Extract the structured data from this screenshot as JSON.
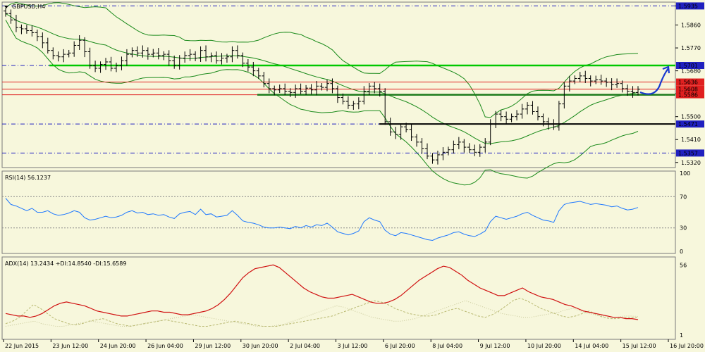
{
  "window": {
    "title": "GBPUSD,H4"
  },
  "colors": {
    "background": "#f7f7dc",
    "candle": "#000000",
    "bollinger": "#1a8a1a",
    "support_resistance": "#00c800",
    "red_level": "#e02020",
    "blue_level": "#2020c0",
    "rsi": "#1e78ff",
    "adx": "#d01010",
    "di_plus": "#b8b870",
    "di_minus": "#c8c898",
    "arrow": "#1a3ad0"
  },
  "chart_data": [
    {
      "type": "candlestick",
      "title": "GBPUSD,H4",
      "price_ticks": [
        "1.5935",
        "1.5860",
        "1.5770",
        "1.5680",
        "1.5590",
        "1.5500",
        "1.5410",
        "1.5320"
      ],
      "ylim": [
        1.53,
        1.595
      ],
      "levels": [
        {
          "value": "1.5935",
          "style": "blue-dash",
          "tag_color": "#2020c0"
        },
        {
          "value": "1.5701",
          "style": "blue-dash",
          "tag_color": "#2020c0"
        },
        {
          "value": "1.5636",
          "style": "red",
          "tag_color": "#e02020"
        },
        {
          "value": "1.5608",
          "style": "red",
          "tag_color": "#e02020"
        },
        {
          "value": "1.5586",
          "style": "red",
          "tag_color": "#e02020"
        },
        {
          "value": "1.5471",
          "style": "blue-dash",
          "tag_color": "#2020c0"
        },
        {
          "value": "1.5357",
          "style": "blue-dash",
          "tag_color": "#2020c0"
        }
      ],
      "close": [
        1.5905,
        1.588,
        1.585,
        1.5845,
        1.5838,
        1.583,
        1.5815,
        1.579,
        1.576,
        1.574,
        1.5735,
        1.5745,
        1.575,
        1.578,
        1.58,
        1.5755,
        1.57,
        1.569,
        1.5705,
        1.5715,
        1.569,
        1.57,
        1.572,
        1.5745,
        1.576,
        1.575,
        1.576,
        1.5745,
        1.575,
        1.574,
        1.5745,
        1.572,
        1.57,
        1.573,
        1.574,
        1.5745,
        1.573,
        1.576,
        1.5735,
        1.574,
        1.572,
        1.573,
        1.5735,
        1.576,
        1.574,
        1.571,
        1.5695,
        1.568,
        1.566,
        1.563,
        1.561,
        1.5605,
        1.561,
        1.56,
        1.5595,
        1.561,
        1.56,
        1.5612,
        1.5605,
        1.562,
        1.5615,
        1.563,
        1.561,
        1.5575,
        1.556,
        1.5545,
        1.555,
        1.556,
        1.56,
        1.562,
        1.561,
        1.56,
        1.548,
        1.544,
        1.543,
        1.546,
        1.545,
        1.542,
        1.54,
        1.5375,
        1.5345,
        1.533,
        1.535,
        1.536,
        1.537,
        1.539,
        1.54,
        1.538,
        1.537,
        1.536,
        1.538,
        1.54,
        1.547,
        1.551,
        1.55,
        1.549,
        1.55,
        1.551,
        1.553,
        1.5545,
        1.552,
        1.55,
        1.548,
        1.547,
        1.546,
        1.555,
        1.562,
        1.564,
        1.565,
        1.566,
        1.565,
        1.564,
        1.5645,
        1.564,
        1.5635,
        1.5625,
        1.563,
        1.561,
        1.56,
        1.5595,
        1.5608
      ],
      "rsi": {
        "label": "RSI(14) 56.1237",
        "ticks": [
          "100",
          "70",
          "30",
          "0"
        ],
        "levels": [
          70,
          30
        ],
        "values": [
          68,
          60,
          58,
          55,
          52,
          55,
          50,
          50,
          52,
          48,
          46,
          47,
          49,
          52,
          50,
          43,
          40,
          41,
          43,
          45,
          43,
          44,
          46,
          50,
          52,
          49,
          50,
          47,
          48,
          46,
          47,
          44,
          42,
          48,
          50,
          51,
          47,
          54,
          47,
          48,
          44,
          45,
          46,
          52,
          46,
          39,
          37,
          36,
          34,
          31,
          30,
          30,
          31,
          30,
          29,
          32,
          30,
          33,
          31,
          34,
          33,
          36,
          31,
          25,
          23,
          21,
          23,
          26,
          38,
          43,
          40,
          38,
          27,
          22,
          20,
          24,
          23,
          21,
          19,
          17,
          15,
          14,
          17,
          19,
          21,
          24,
          25,
          22,
          20,
          19,
          22,
          26,
          38,
          45,
          43,
          41,
          43,
          45,
          48,
          50,
          46,
          43,
          40,
          39,
          37,
          52,
          60,
          62,
          63,
          64,
          62,
          60,
          61,
          60,
          59,
          57,
          58,
          55,
          53,
          54,
          56.1
        ]
      },
      "adx": {
        "label": "ADX(14) 13.2434 +DI:14.8540 -DI:15.6589",
        "ticks": [
          "56",
          "1"
        ],
        "adx_values": [
          18,
          17,
          16,
          16,
          15,
          16,
          18,
          21,
          24,
          26,
          27,
          26,
          25,
          24,
          22,
          20,
          19,
          18,
          17,
          16,
          16,
          17,
          18,
          19,
          20,
          20,
          19,
          19,
          18,
          17,
          17,
          18,
          19,
          20,
          22,
          25,
          29,
          34,
          40,
          46,
          50,
          53,
          54,
          55,
          56,
          54,
          50,
          46,
          42,
          38,
          35,
          33,
          31,
          30,
          30,
          31,
          32,
          33,
          31,
          29,
          27,
          26,
          26,
          27,
          29,
          32,
          36,
          40,
          44,
          47,
          50,
          53,
          55,
          54,
          51,
          48,
          44,
          41,
          38,
          36,
          34,
          32,
          32,
          34,
          36,
          38,
          35,
          33,
          31,
          30,
          29,
          27,
          25,
          24,
          22,
          20,
          19,
          18,
          17,
          16,
          15,
          15,
          14,
          14,
          13.2
        ],
        "di_plus": [
          10,
          12,
          15,
          20,
          25,
          22,
          18,
          14,
          12,
          10,
          9,
          10,
          12,
          13,
          14,
          12,
          10,
          9,
          8,
          9,
          10,
          11,
          12,
          13,
          12,
          11,
          10,
          9,
          8,
          8,
          9,
          10,
          11,
          12,
          11,
          10,
          9,
          8,
          8,
          8,
          9,
          10,
          11,
          12,
          13,
          14,
          15,
          16,
          18,
          20,
          22,
          24,
          26,
          28,
          27,
          25,
          22,
          20,
          18,
          17,
          16,
          16,
          17,
          19,
          21,
          22,
          20,
          18,
          16,
          15,
          17,
          20,
          24,
          28,
          30,
          28,
          25,
          22,
          20,
          18,
          16,
          15,
          16,
          18,
          20,
          17,
          15,
          14,
          14,
          15,
          15,
          14.9
        ],
        "di_minus": [
          8,
          9,
          10,
          11,
          12,
          10,
          9,
          8,
          8,
          9,
          10,
          11,
          12,
          11,
          10,
          9,
          8,
          8,
          9,
          10,
          11,
          12,
          13,
          14,
          15,
          16,
          17,
          16,
          15,
          14,
          13,
          12,
          11,
          10,
          9,
          8,
          8,
          8,
          9,
          10,
          12,
          14,
          16,
          18,
          20,
          22,
          24,
          23,
          21,
          19,
          17,
          15,
          14,
          13,
          12,
          12,
          13,
          14,
          16,
          18,
          20,
          22,
          24,
          26,
          28,
          26,
          24,
          22,
          20,
          18,
          17,
          16,
          15,
          15,
          16,
          17,
          18,
          19,
          21,
          22,
          20,
          18,
          17,
          16,
          15,
          15,
          16,
          16,
          15.7
        ]
      },
      "x_ticks": [
        "22 Jun 2015",
        "23 Jun 12:00",
        "24 Jun 20:00",
        "26 Jun 04:00",
        "29 Jun 12:00",
        "30 Jun 20:00",
        "2 Jul 04:00",
        "3 Jul 12:00",
        "6 Jul 20:00",
        "8 Jul 04:00",
        "9 Jul 12:00",
        "10 Jul 20:00",
        "14 Jul 04:00",
        "15 Jul 12:00",
        "16 Jul 20:00"
      ]
    }
  ]
}
